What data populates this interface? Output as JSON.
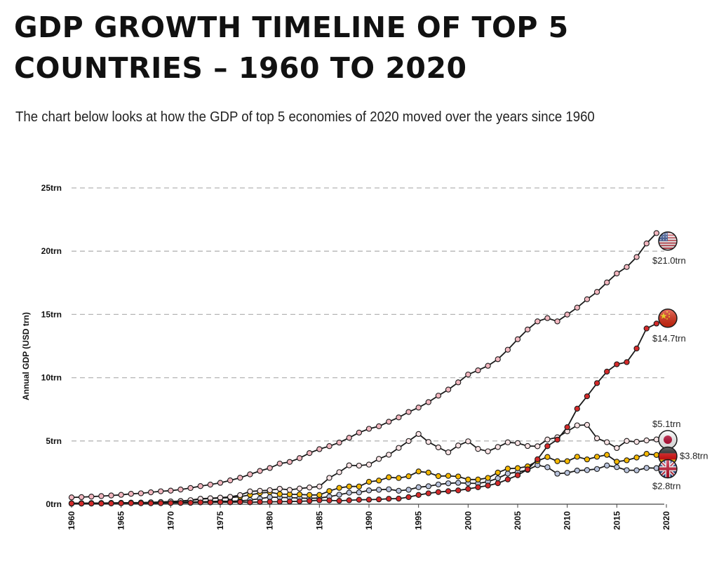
{
  "title": "GDP GROWTH TIMELINE OF TOP 5 COUNTRIES – 1960 TO 2020",
  "subtitle": "The chart below looks at how the GDP of top 5 economies of 2020 moved over the years since 1960",
  "chart_data": {
    "type": "line",
    "title": "GDP GROWTH TIMELINE OF TOP 5 COUNTRIES – 1960 TO 2020",
    "ylabel": "Annual GDP (USD trn)",
    "xlabel": "",
    "xlim": [
      1960,
      2020
    ],
    "ylim": [
      0,
      25
    ],
    "yticks": [
      {
        "value": 0,
        "label": "0trn"
      },
      {
        "value": 5,
        "label": "5trn"
      },
      {
        "value": 10,
        "label": "10trn"
      },
      {
        "value": 15,
        "label": "15trn"
      },
      {
        "value": 20,
        "label": "20trn"
      },
      {
        "value": 25,
        "label": "25trn"
      }
    ],
    "xticks": [
      1960,
      1965,
      1970,
      1975,
      1980,
      1985,
      1990,
      1995,
      2000,
      2005,
      2010,
      2015,
      2020
    ],
    "grid": "horizontal dashed",
    "end_labels": [
      {
        "series": "United States",
        "label": "$21.0trn",
        "value": 21.0,
        "flag": "us-flag-icon"
      },
      {
        "series": "China",
        "label": "$14.7trn",
        "value": 14.7,
        "flag": "china-flag-icon"
      },
      {
        "series": "Japan",
        "label": "$5.1trn",
        "value": 5.1,
        "flag": "japan-flag-icon"
      },
      {
        "series": "Germany",
        "label": "$3.8trn",
        "value": 3.8,
        "flag": "germany-flag-icon"
      },
      {
        "series": "United Kingdom",
        "label": "$2.8trn",
        "value": 2.8,
        "flag": "uk-flag-icon"
      }
    ],
    "x": [
      1960,
      1961,
      1962,
      1963,
      1964,
      1965,
      1966,
      1967,
      1968,
      1969,
      1970,
      1971,
      1972,
      1973,
      1974,
      1975,
      1976,
      1977,
      1978,
      1979,
      1980,
      1981,
      1982,
      1983,
      1984,
      1985,
      1986,
      1987,
      1988,
      1989,
      1990,
      1991,
      1992,
      1993,
      1994,
      1995,
      1996,
      1997,
      1998,
      1999,
      2000,
      2001,
      2002,
      2003,
      2004,
      2005,
      2006,
      2007,
      2008,
      2009,
      2010,
      2011,
      2012,
      2013,
      2014,
      2015,
      2016,
      2017,
      2018,
      2019
    ],
    "series": [
      {
        "key": "us",
        "color": "#f3b7c0",
        "values": [
          0.54,
          0.56,
          0.6,
          0.64,
          0.69,
          0.74,
          0.82,
          0.86,
          0.94,
          1.02,
          1.07,
          1.16,
          1.28,
          1.43,
          1.55,
          1.69,
          1.88,
          2.09,
          2.36,
          2.63,
          2.86,
          3.21,
          3.34,
          3.64,
          4.04,
          4.35,
          4.59,
          4.87,
          5.25,
          5.66,
          5.96,
          6.16,
          6.52,
          6.86,
          7.29,
          7.64,
          8.07,
          8.58,
          9.06,
          9.63,
          10.25,
          10.58,
          10.94,
          11.46,
          12.21,
          13.04,
          13.81,
          14.45,
          14.71,
          14.45,
          14.99,
          15.54,
          16.2,
          16.78,
          17.53,
          18.24,
          18.75,
          19.54,
          20.61,
          21.43
        ]
      },
      {
        "key": "cn",
        "color": "#d42a2a",
        "values": [
          0.06,
          0.05,
          0.05,
          0.05,
          0.06,
          0.07,
          0.08,
          0.07,
          0.07,
          0.08,
          0.09,
          0.1,
          0.11,
          0.14,
          0.14,
          0.16,
          0.15,
          0.17,
          0.15,
          0.18,
          0.19,
          0.2,
          0.21,
          0.23,
          0.26,
          0.31,
          0.3,
          0.27,
          0.31,
          0.35,
          0.36,
          0.38,
          0.43,
          0.44,
          0.56,
          0.73,
          0.86,
          0.96,
          1.03,
          1.09,
          1.21,
          1.34,
          1.47,
          1.66,
          1.96,
          2.29,
          2.75,
          3.55,
          4.59,
          5.1,
          6.09,
          7.55,
          8.53,
          9.57,
          10.48,
          11.06,
          11.23,
          12.31,
          13.89,
          14.28
        ]
      },
      {
        "key": "jp",
        "color": "#fbe3e5",
        "values": [
          0.04,
          0.05,
          0.06,
          0.07,
          0.08,
          0.09,
          0.1,
          0.12,
          0.15,
          0.17,
          0.21,
          0.24,
          0.32,
          0.43,
          0.47,
          0.52,
          0.58,
          0.72,
          1.01,
          1.06,
          1.11,
          1.22,
          1.13,
          1.24,
          1.32,
          1.4,
          2.08,
          2.53,
          3.07,
          3.05,
          3.13,
          3.58,
          3.91,
          4.45,
          4.99,
          5.55,
          4.92,
          4.49,
          4.1,
          4.64,
          4.97,
          4.37,
          4.18,
          4.52,
          4.89,
          4.83,
          4.6,
          4.58,
          5.11,
          5.29,
          5.76,
          6.23,
          6.27,
          5.21,
          4.9,
          4.44,
          5.0,
          4.93,
          5.04,
          5.12
        ]
      },
      {
        "key": "de",
        "color": "#f5b800",
        "values": [
          0.07,
          0.08,
          0.09,
          0.09,
          0.1,
          0.11,
          0.12,
          0.12,
          0.13,
          0.15,
          0.21,
          0.25,
          0.3,
          0.4,
          0.45,
          0.49,
          0.52,
          0.6,
          0.74,
          0.88,
          0.95,
          0.8,
          0.78,
          0.77,
          0.73,
          0.73,
          1.04,
          1.29,
          1.4,
          1.4,
          1.77,
          1.87,
          2.13,
          2.07,
          2.21,
          2.59,
          2.5,
          2.22,
          2.24,
          2.19,
          1.95,
          1.95,
          2.08,
          2.5,
          2.81,
          2.85,
          2.99,
          3.42,
          3.73,
          3.4,
          3.4,
          3.75,
          3.54,
          3.75,
          3.9,
          3.36,
          3.47,
          3.69,
          3.98,
          3.89
        ]
      },
      {
        "key": "uk",
        "color": "#b9c3dc",
        "values": [
          0.07,
          0.08,
          0.08,
          0.09,
          0.09,
          0.1,
          0.11,
          0.11,
          0.11,
          0.12,
          0.13,
          0.15,
          0.17,
          0.19,
          0.21,
          0.24,
          0.23,
          0.26,
          0.33,
          0.44,
          0.56,
          0.54,
          0.52,
          0.49,
          0.46,
          0.49,
          0.6,
          0.75,
          0.91,
          0.93,
          1.09,
          1.14,
          1.18,
          1.06,
          1.14,
          1.34,
          1.42,
          1.56,
          1.65,
          1.69,
          1.66,
          1.64,
          1.78,
          2.05,
          2.42,
          2.54,
          2.71,
          3.09,
          2.92,
          2.41,
          2.48,
          2.66,
          2.7,
          2.78,
          3.06,
          2.93,
          2.69,
          2.68,
          2.87,
          2.85
        ]
      }
    ]
  }
}
